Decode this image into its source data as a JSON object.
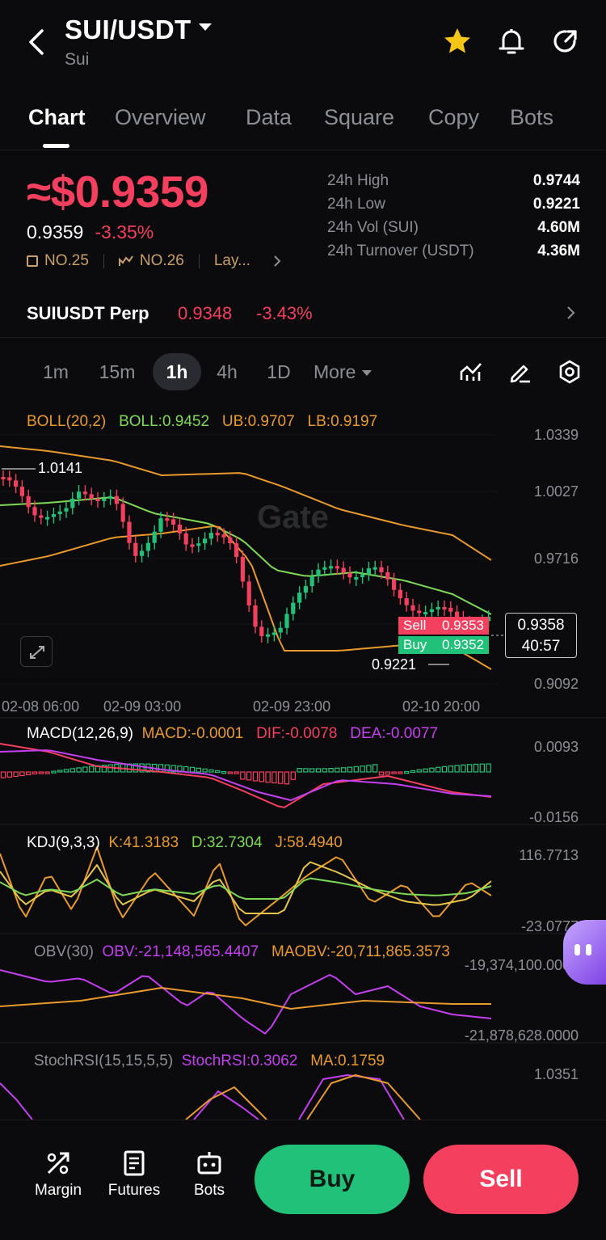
{
  "header": {
    "pair": "SUI/USDT",
    "name": "Sui"
  },
  "tabs": [
    {
      "label": "Chart",
      "active": true
    },
    {
      "label": "Overview"
    },
    {
      "label": "Data"
    },
    {
      "label": "Square"
    },
    {
      "label": "Copy"
    },
    {
      "label": "Bots"
    }
  ],
  "ticker": {
    "price_big": "≈$0.9359",
    "price": "0.9359",
    "change": "-3.35%",
    "rank1": "NO.25",
    "rank2": "NO.26",
    "more": "Lay..."
  },
  "stats": [
    {
      "label": "24h  High",
      "value": "0.9744"
    },
    {
      "label": "24h  Low",
      "value": "0.9221"
    },
    {
      "label": "24h  Vol (SUI)",
      "value": "4.60M"
    },
    {
      "label": "24h  Turnover (USDT)",
      "value": "4.36M"
    }
  ],
  "perp": {
    "label": "SUIUSDT Perp",
    "price": "0.9348",
    "change": "-3.43%"
  },
  "timeframes": [
    "1m",
    "15m",
    "1h",
    "4h",
    "1D",
    "More"
  ],
  "active_timeframe": "1h",
  "chart": {
    "boll_title": "BOLL(20,2)",
    "boll_mid": "BOLL:0.9452",
    "boll_ub": "UB:0.9707",
    "boll_lb": "LB:0.9197",
    "price_axis": [
      "1.0339",
      "1.0027",
      "0.9716",
      "0.9092"
    ],
    "high_marker": "1.0141",
    "low_marker": "0.9221",
    "sell_label": "Sell",
    "sell_price": "0.9353",
    "buy_label": "Buy",
    "buy_price": "0.9352",
    "last_price": "0.9358",
    "countdown": "40:57",
    "time_axis": [
      "02-08 06:00",
      "02-09 03:00",
      "02-09 23:00",
      "02-10 20:00"
    ],
    "watermark": "Gate",
    "macd_title": "MACD(12,26,9)",
    "macd_val": "MACD:-0.0001",
    "macd_dif": "DIF:-0.0078",
    "macd_dea": "DEA:-0.0077",
    "macd_axis": [
      "0.0093",
      "-0.0156"
    ],
    "kdj_title": "KDJ(9,3,3)",
    "kdj_k": "K:41.3183",
    "kdj_d": "D:32.7304",
    "kdj_j": "J:58.4940",
    "kdj_axis": [
      "116.7713",
      "-23.0777"
    ],
    "obv_title": "OBV(30)",
    "obv_val": "OBV:-21,148,565.4407",
    "obv_ma": "MAOBV:-20,711,865.3573",
    "obv_axis": [
      "-19,374,100.0000",
      "-21,878,628.0000"
    ],
    "stoch_title": "StochRSI(15,15,5,5)",
    "stoch_val": "StochRSI:0.3062",
    "stoch_ma": "MA:0.1759",
    "stoch_axis": [
      "1.0351"
    ]
  },
  "bottom": {
    "margin": "Margin",
    "futures": "Futures",
    "bots": "Bots",
    "buy": "Buy",
    "sell": "Sell"
  },
  "colors": {
    "up": "#22c17a",
    "down": "#f43f5e",
    "boll": "#e99a2c",
    "boll_mid": "#7ed957",
    "purple": "#c43ff0"
  }
}
